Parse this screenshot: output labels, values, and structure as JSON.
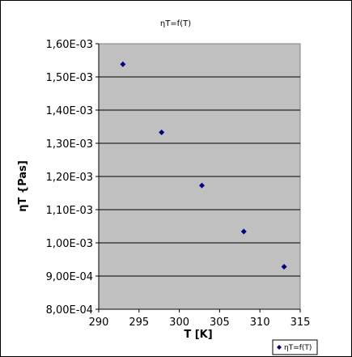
{
  "chart_data": {
    "type": "scatter",
    "title": "ηT=f(T)",
    "xlabel": "T [K]",
    "ylabel": "ηT {Pas]",
    "xlim": [
      290,
      315
    ],
    "ylim": [
      0.0008,
      0.0016
    ],
    "x_ticks": [
      "290",
      "295",
      "300",
      "305",
      "310",
      "315"
    ],
    "y_ticks": [
      "8,00E-04",
      "9,00E-04",
      "1,00E-03",
      "1,10E-03",
      "1,20E-03",
      "1,30E-03",
      "1,40E-03",
      "1,50E-03",
      "1,60E-03"
    ],
    "grid": "horizontal",
    "legend_position": "bottom-right",
    "series": [
      {
        "name": "ηT=f(T)",
        "x": [
          293,
          297.8,
          302.8,
          308,
          313
        ],
        "y": [
          0.001538,
          0.001333,
          0.001173,
          0.001034,
          0.000928
        ]
      }
    ],
    "colors": {
      "plot_background": "#c0c0c0",
      "marker": "#000080",
      "grid": "#000000"
    }
  }
}
